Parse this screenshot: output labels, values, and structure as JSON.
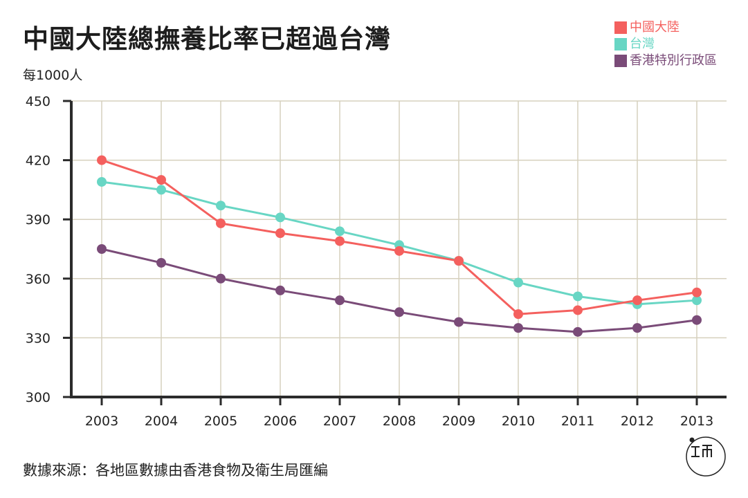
{
  "title": "中國大陸總撫養比率已超過台灣",
  "unit_label": "每1000人",
  "source": "數據來源：各地區數據由香港食物及衛生局匯編",
  "colors": {
    "axis": "#2b2b2b",
    "grid": "#d6d0bd",
    "tick_text": "#222222"
  },
  "chart_data": {
    "type": "line",
    "title": "中國大陸總撫養比率已超過台灣",
    "ylabel": "每1000人",
    "xlabel": "",
    "x": [
      "2003",
      "2004",
      "2005",
      "2006",
      "2007",
      "2008",
      "2009",
      "2010",
      "2011",
      "2012",
      "2013"
    ],
    "ylim": [
      300,
      450
    ],
    "yticks": [
      300,
      330,
      360,
      390,
      420,
      450
    ],
    "grid": true,
    "legend_position": "top-right",
    "series": [
      {
        "name": "中國大陸",
        "color": "#f4605e",
        "values": [
          420,
          410,
          388,
          383,
          379,
          374,
          369,
          342,
          344,
          349,
          353
        ]
      },
      {
        "name": "台灣",
        "color": "#68d6c4",
        "values": [
          409,
          405,
          397,
          391,
          384,
          377,
          369,
          358,
          351,
          347,
          349
        ]
      },
      {
        "name": "香港特別行政區",
        "color": "#7a4b78",
        "values": [
          375,
          368,
          360,
          354,
          349,
          343,
          338,
          335,
          333,
          335,
          339
        ]
      }
    ]
  }
}
